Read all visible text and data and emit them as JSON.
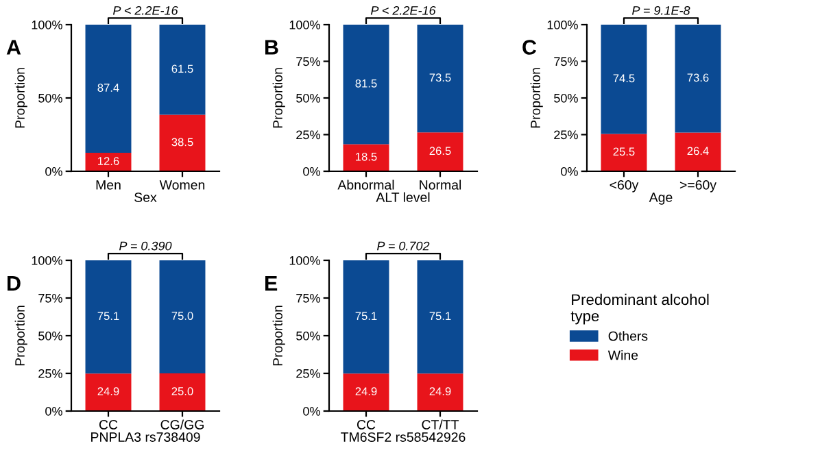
{
  "chart_data": [
    {
      "type": "bar",
      "title": "A",
      "stacked": true,
      "categories": [
        "Men",
        "Women"
      ],
      "xlabel": "Sex",
      "ylabel": "Proportion",
      "ylim": [
        0,
        100
      ],
      "yticks": [
        {
          "value": 0,
          "label": "0%"
        },
        {
          "value": 50,
          "label": "50%"
        },
        {
          "value": 100,
          "label": "100%"
        }
      ],
      "annotations": [
        "P < 2.2E-16"
      ],
      "data_labels": true,
      "series": [
        {
          "color": "#e8141b",
          "values": [
            12.6,
            38.5
          ]
        },
        {
          "color": "#0b4a93",
          "values": [
            87.4,
            61.5
          ]
        }
      ]
    },
    {
      "type": "bar",
      "title": "B",
      "stacked": true,
      "categories": [
        "Abnormal",
        "Normal"
      ],
      "xlabel": "ALT level",
      "ylabel": "Proportion",
      "ylim": [
        0,
        100
      ],
      "yticks": [
        {
          "value": 0,
          "label": "0%"
        },
        {
          "value": 25,
          "label": "25%"
        },
        {
          "value": 50,
          "label": "50%"
        },
        {
          "value": 75,
          "label": "75%"
        },
        {
          "value": 100,
          "label": "100%"
        }
      ],
      "annotations": [
        "P < 2.2E-16"
      ],
      "data_labels": true,
      "series": [
        {
          "color": "#e8141b",
          "values": [
            18.5,
            26.5
          ]
        },
        {
          "color": "#0b4a93",
          "values": [
            81.5,
            73.5
          ]
        }
      ]
    },
    {
      "type": "bar",
      "title": "C",
      "stacked": true,
      "categories": [
        "<60y",
        ">=60y"
      ],
      "xlabel": "Age",
      "ylabel": "Proportion",
      "ylim": [
        0,
        100
      ],
      "yticks": [
        {
          "value": 0,
          "label": "0%"
        },
        {
          "value": 25,
          "label": "25%"
        },
        {
          "value": 50,
          "label": "50%"
        },
        {
          "value": 75,
          "label": "75%"
        },
        {
          "value": 100,
          "label": "100%"
        }
      ],
      "annotations": [
        "P = 9.1E-8"
      ],
      "data_labels": true,
      "series": [
        {
          "color": "#e8141b",
          "values": [
            25.5,
            26.4
          ]
        },
        {
          "color": "#0b4a93",
          "values": [
            74.5,
            73.6
          ]
        }
      ]
    },
    {
      "type": "bar",
      "title": "D",
      "stacked": true,
      "categories": [
        "CC",
        "CG/GG"
      ],
      "xlabel": "PNPLA3 rs738409",
      "ylabel": "Proportion",
      "ylim": [
        0,
        100
      ],
      "yticks": [
        {
          "value": 0,
          "label": "0%"
        },
        {
          "value": 25,
          "label": "25%"
        },
        {
          "value": 50,
          "label": "50%"
        },
        {
          "value": 75,
          "label": "75%"
        },
        {
          "value": 100,
          "label": "100%"
        }
      ],
      "annotations": [
        "P = 0.390"
      ],
      "data_labels": true,
      "series": [
        {
          "color": "#e8141b",
          "values": [
            24.9,
            25.0
          ],
          "value_labels": [
            "24.9",
            "25.0"
          ]
        },
        {
          "color": "#0b4a93",
          "values": [
            75.1,
            75.0
          ],
          "value_labels": [
            "75.1",
            "75.0"
          ]
        }
      ]
    },
    {
      "type": "bar",
      "title": "E",
      "stacked": true,
      "categories": [
        "CC",
        "CT/TT"
      ],
      "xlabel": "TM6SF2 rs58542926",
      "ylabel": "Proportion",
      "ylim": [
        0,
        100
      ],
      "yticks": [
        {
          "value": 0,
          "label": "0%"
        },
        {
          "value": 25,
          "label": "25%"
        },
        {
          "value": 50,
          "label": "50%"
        },
        {
          "value": 75,
          "label": "75%"
        },
        {
          "value": 100,
          "label": "100%"
        }
      ],
      "annotations": [
        "P = 0.702"
      ],
      "data_labels": true,
      "legend": "right",
      "legend_title": "Predominant alcohol\ntype",
      "series": [
        {
          "name": "Wine",
          "color": "#e8141b",
          "values": [
            24.9,
            24.9
          ]
        },
        {
          "name": "Others",
          "color": "#0b4a93",
          "values": [
            75.1,
            75.1
          ]
        }
      ]
    }
  ]
}
